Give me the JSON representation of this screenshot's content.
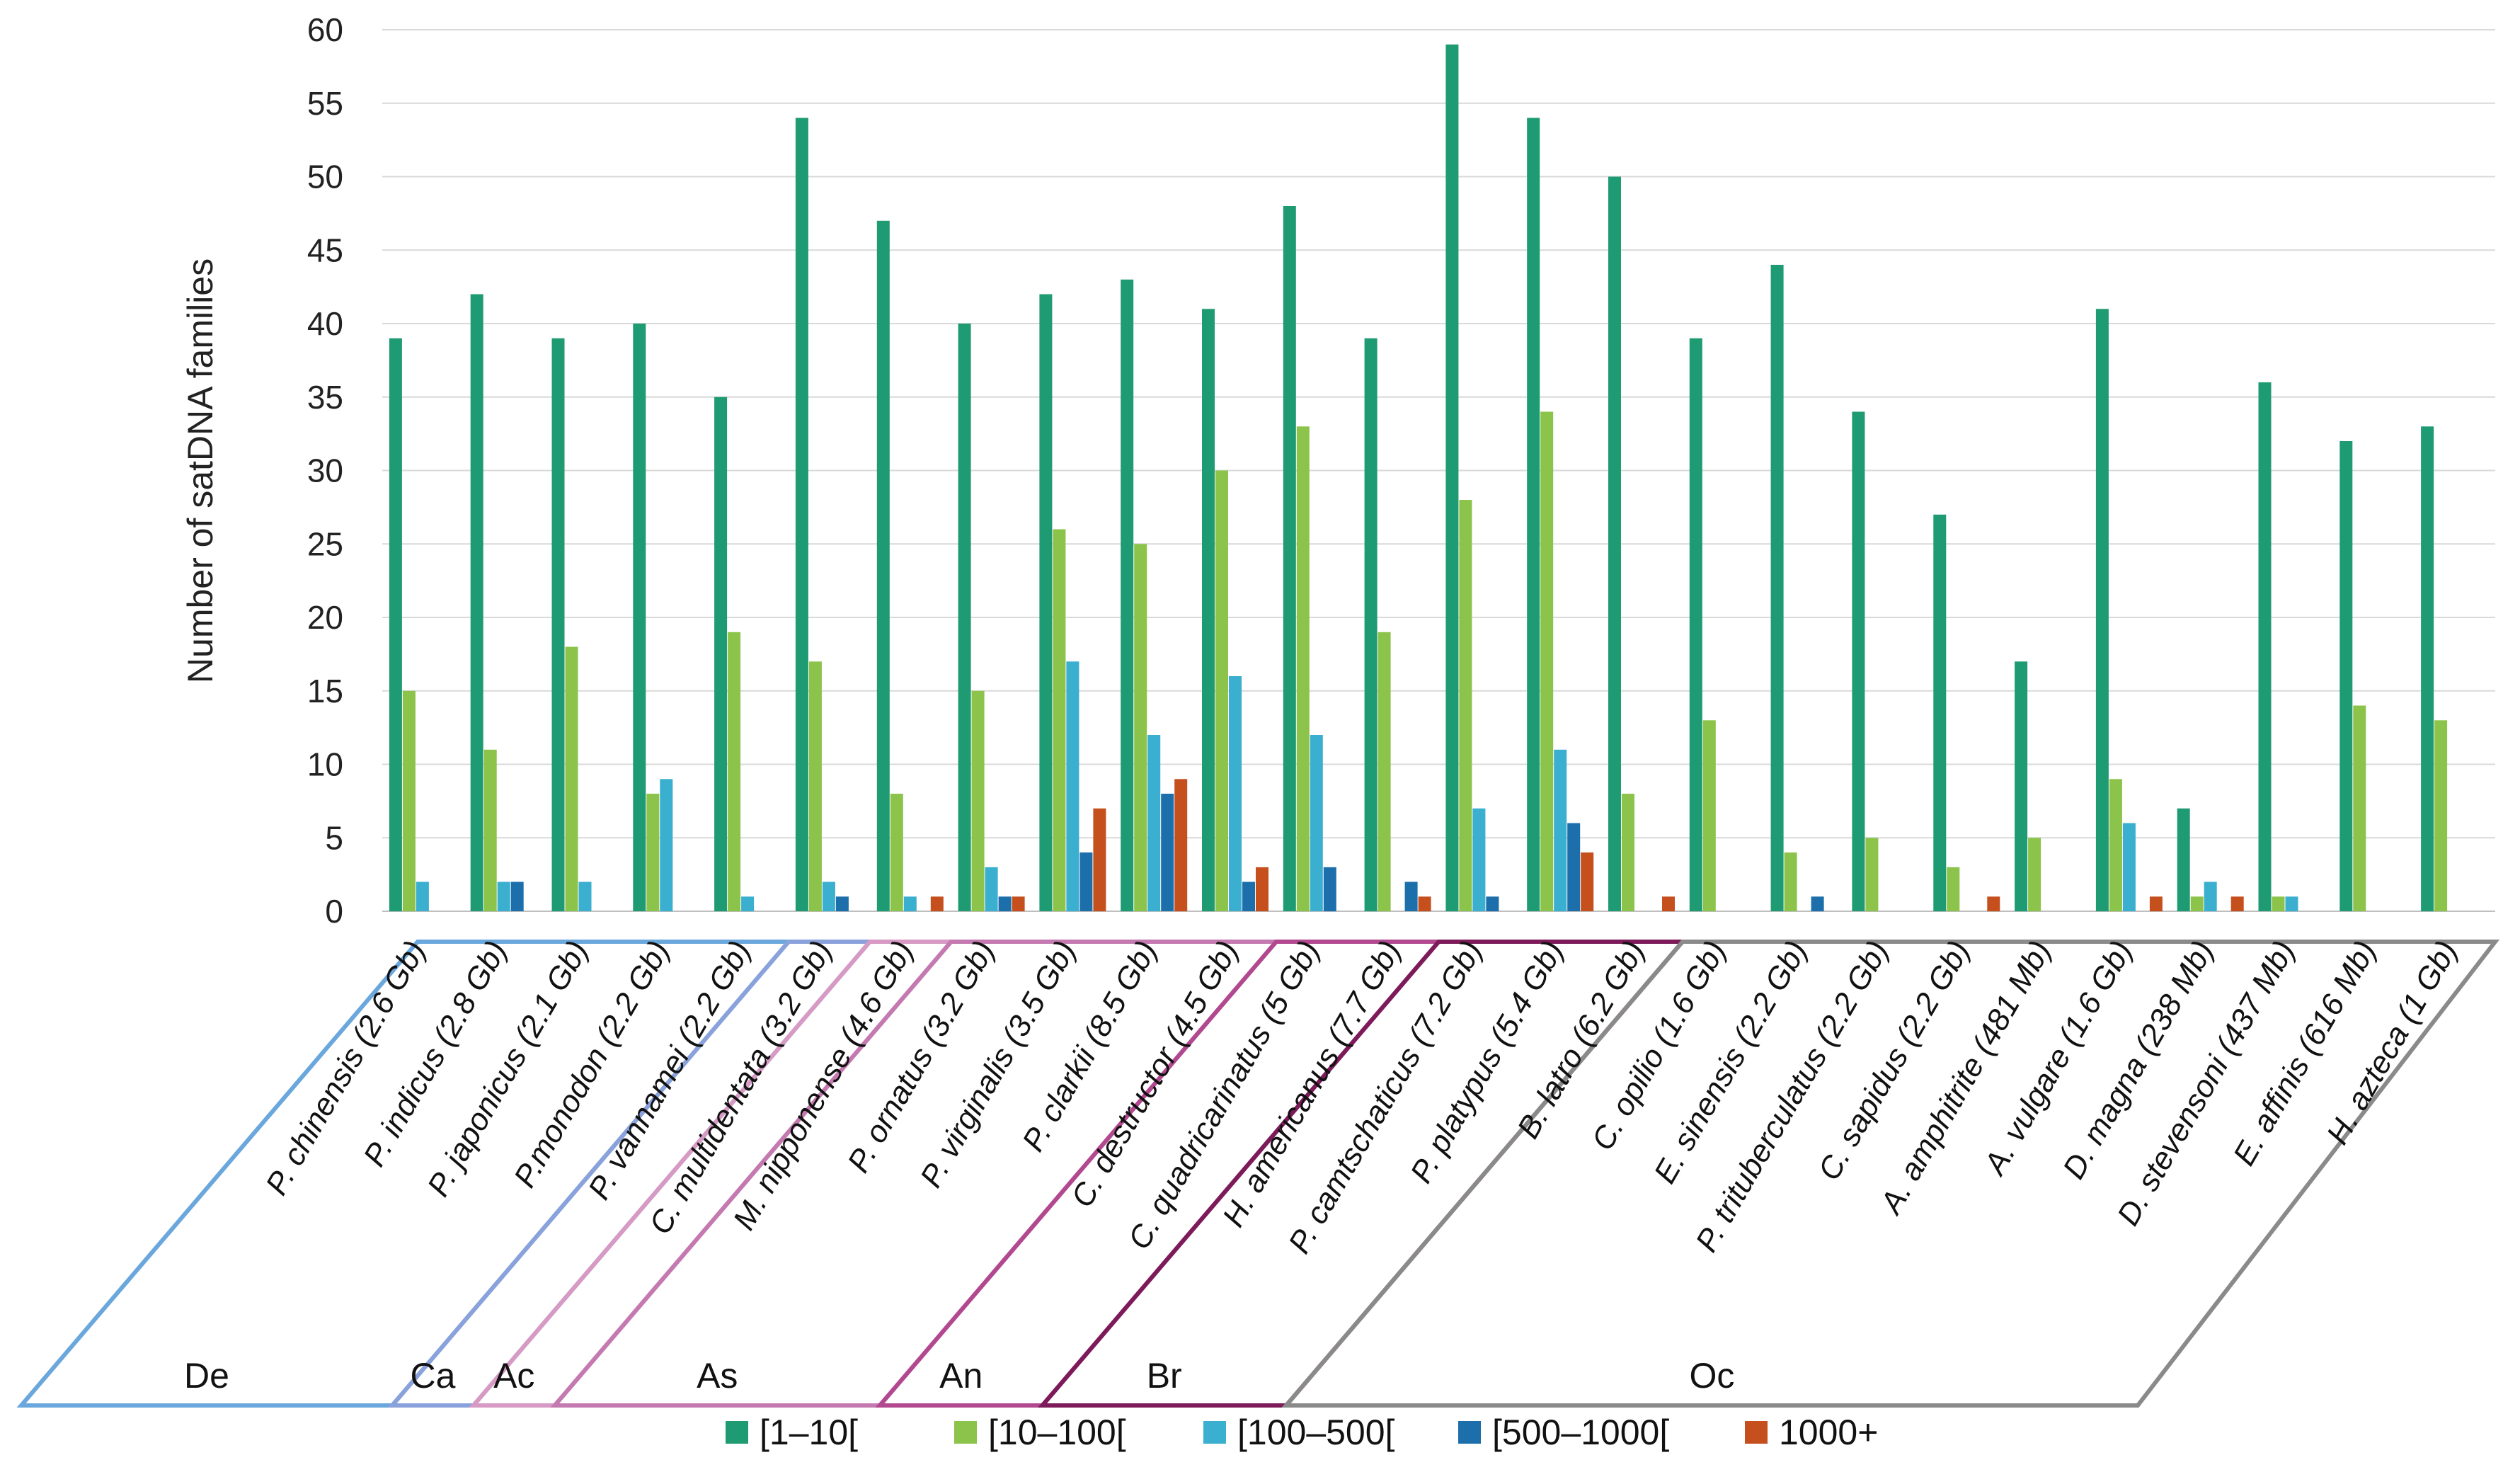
{
  "chart_data": {
    "type": "bar",
    "ylabel": "Number of satDNA families",
    "ylim": [
      0,
      60
    ],
    "yticks": [
      0,
      5,
      10,
      15,
      20,
      25,
      30,
      35,
      40,
      45,
      50,
      55,
      60
    ],
    "grid": true,
    "categories": [
      "P. chinensis (2.6 Gb)",
      "P. indicus (2.8 Gb)",
      "P. japonicus (2.1 Gb)",
      "P.monodon (2.2 Gb)",
      "P. vannamei (2.2 Gb)",
      "C. multidentata (3.2 Gb)",
      "M. nipponense (4.6 Gb)",
      "P. ornatus (3.2 Gb)",
      "P. virginalis (3.5 Gb)",
      "P. clarkii (8.5 Gb)",
      "C. destructor (4.5 Gb)",
      "C. quadricarinatus (5 Gb)",
      "H. americanus (7.7 Gb)",
      "P. camtschaticus (7.2 Gb)",
      "P. platypus (5.4 Gb)",
      "B. latro (6.2 Gb)",
      "C. opilio (1.6 Gb)",
      "E. sinensis (2.2 Gb)",
      "P. trituberculatus (2.2 Gb)",
      "C. sapidus (2.2 Gb)",
      "A. amphitrite  (481 Mb)",
      "A. vulgare (1.6 Gb)",
      "D. magna (238 Mb)",
      "D. stevensoni (437 Mb)",
      "E. affinis (616 Mb)",
      "H. azteca (1 Gb)"
    ],
    "series": [
      {
        "name": "[1–10[",
        "color": "#1e9b72",
        "values": [
          39,
          42,
          39,
          40,
          35,
          54,
          47,
          40,
          42,
          43,
          41,
          48,
          39,
          59,
          54,
          50,
          39,
          44,
          34,
          27,
          17,
          41,
          7,
          36,
          32,
          33
        ]
      },
      {
        "name": "[10–100[",
        "color": "#8cc34a",
        "values": [
          15,
          11,
          18,
          8,
          19,
          17,
          8,
          15,
          26,
          25,
          30,
          33,
          19,
          28,
          34,
          8,
          13,
          4,
          5,
          3,
          5,
          9,
          1,
          1,
          14,
          13
        ]
      },
      {
        "name": "[100–500[",
        "color": "#3aafcf",
        "values": [
          2,
          2,
          2,
          9,
          1,
          2,
          1,
          3,
          17,
          12,
          16,
          12,
          0,
          7,
          11,
          0,
          0,
          0,
          0,
          0,
          0,
          6,
          2,
          1,
          0,
          0
        ]
      },
      {
        "name": "[500–1000[",
        "color": "#1c6fab",
        "values": [
          0,
          2,
          0,
          0,
          0,
          1,
          0,
          1,
          4,
          8,
          2,
          3,
          2,
          1,
          6,
          0,
          0,
          1,
          0,
          0,
          0,
          0,
          0,
          0,
          0,
          0
        ]
      },
      {
        "name": "1000+",
        "color": "#c5501e",
        "values": [
          0,
          0,
          0,
          0,
          0,
          0,
          1,
          1,
          7,
          9,
          3,
          0,
          1,
          0,
          4,
          1,
          0,
          0,
          0,
          1,
          0,
          1,
          1,
          0,
          0,
          0
        ]
      }
    ],
    "groups": [
      {
        "label": "De",
        "start": 0,
        "end": 4,
        "color": "#6aa7dc"
      },
      {
        "label": "Ca",
        "start": 5,
        "end": 5,
        "color": "#8aa2dc"
      },
      {
        "label": "Ac",
        "start": 6,
        "end": 6,
        "color": "#d79ac4"
      },
      {
        "label": "As",
        "start": 7,
        "end": 10,
        "color": "#c47ab0"
      },
      {
        "label": "An",
        "start": 11,
        "end": 12,
        "color": "#b2488f"
      },
      {
        "label": "Br",
        "start": 13,
        "end": 15,
        "color": "#7c1a5a"
      },
      {
        "label": "Oc",
        "start": 16,
        "end": 25,
        "color": "#8a8a8a"
      }
    ]
  }
}
